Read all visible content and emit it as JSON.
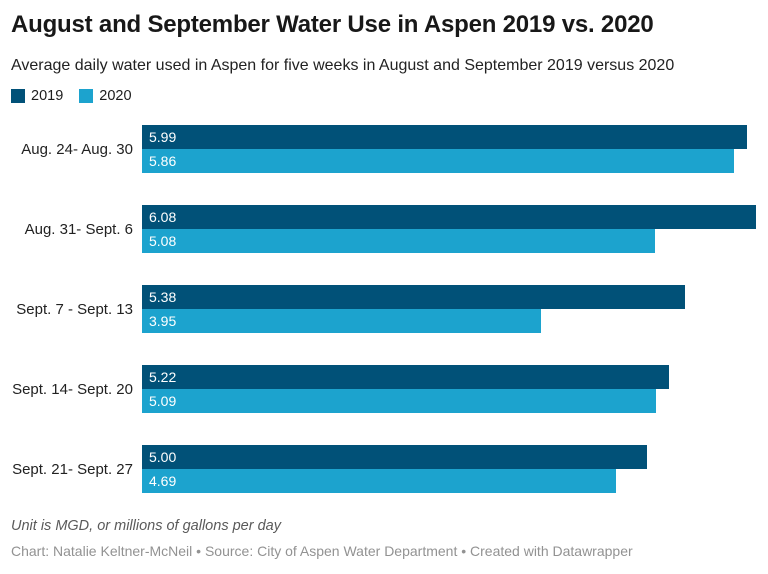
{
  "title": "August and September Water Use in Aspen 2019 vs. 2020",
  "subtitle": "Average daily water used in Aspen for five weeks in August and September 2019 versus 2020",
  "legend": {
    "items": [
      {
        "label": "2019",
        "color": "#015178"
      },
      {
        "label": "2020",
        "color": "#1CA3CE"
      }
    ]
  },
  "chart_data": {
    "type": "bar",
    "orientation": "horizontal",
    "title": "August and September Water Use in Aspen 2019 vs. 2020",
    "subtitle": "Average daily water used in Aspen for five weeks in August and September 2019 versus 2020",
    "categories": [
      "Aug. 24- Aug. 30",
      "Aug. 31- Sept. 6",
      "Sept. 7 - Sept. 13",
      "Sept. 14- Sept. 20",
      "Sept. 21- Sept. 27"
    ],
    "series": [
      {
        "name": "2019",
        "color": "#015178",
        "values": [
          5.99,
          6.08,
          5.38,
          5.22,
          5.0
        ]
      },
      {
        "name": "2020",
        "color": "#1CA3CE",
        "values": [
          5.86,
          5.08,
          3.95,
          5.09,
          4.69
        ]
      }
    ],
    "xlim": [
      0,
      6.08
    ],
    "value_label_decimals": 2,
    "value_labels": "inside-left-white",
    "grid": false,
    "axis_ticks": "none",
    "legend_position": "top-left",
    "unit": "MGD"
  },
  "footer": {
    "note": "Unit is MGD, or millions of gallons per day",
    "credit": "Chart: Natalie Keltner-McNeil • Source: City of Aspen Water Department • Created with Datawrapper"
  }
}
